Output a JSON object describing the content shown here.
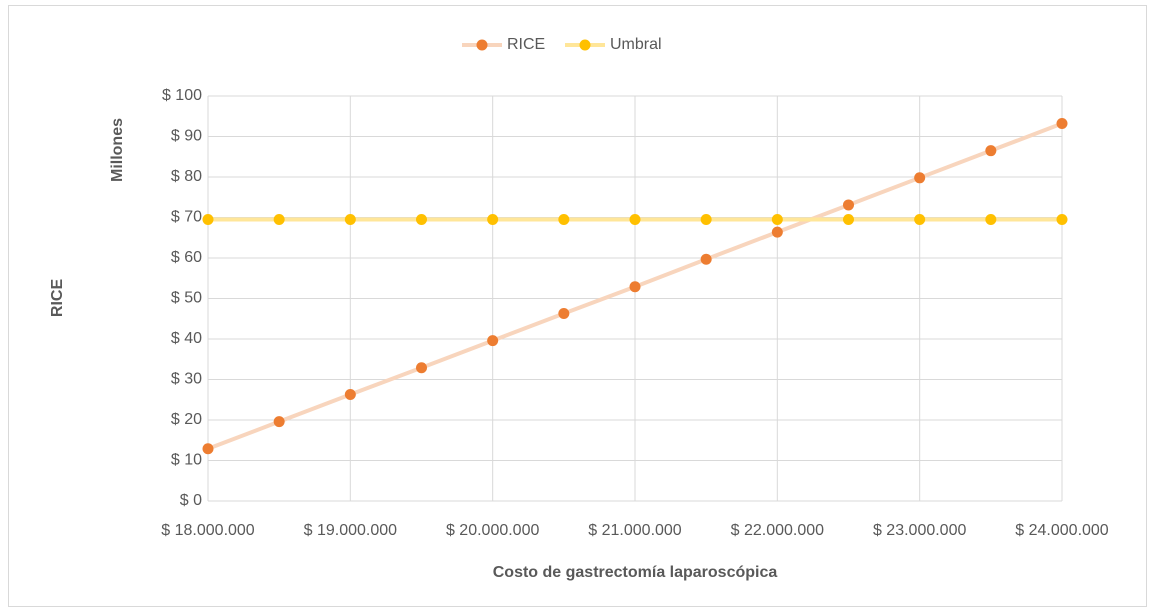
{
  "chart_data": {
    "type": "line",
    "y_label": "RICE",
    "y_unit_label": "Millones",
    "x_label": "Costo de gastrectomía laparoscópica",
    "x": [
      18000000,
      18500000,
      19000000,
      19500000,
      20000000,
      20500000,
      21000000,
      21500000,
      22000000,
      22500000,
      23000000,
      23500000,
      24000000
    ],
    "series": [
      {
        "name": "RICE",
        "color": "#ed7d31",
        "line_color": "#f8d5bd",
        "values": [
          12.9,
          19.6,
          26.3,
          32.9,
          39.6,
          46.3,
          52.9,
          59.7,
          66.4,
          73.1,
          79.8,
          86.5,
          93.2
        ]
      },
      {
        "name": "Umbral",
        "color": "#ffc000",
        "line_color": "#ffe699",
        "values": [
          69.5,
          69.5,
          69.5,
          69.5,
          69.5,
          69.5,
          69.5,
          69.5,
          69.5,
          69.5,
          69.5,
          69.5,
          69.5
        ]
      }
    ],
    "xlim": [
      18000000,
      24000000
    ],
    "xticks": [
      {
        "value": 18000000,
        "label": "$ 18.000.000"
      },
      {
        "value": 19000000,
        "label": "$ 19.000.000"
      },
      {
        "value": 20000000,
        "label": "$ 20.000.000"
      },
      {
        "value": 21000000,
        "label": "$ 21.000.000"
      },
      {
        "value": 22000000,
        "label": "$ 22.000.000"
      },
      {
        "value": 23000000,
        "label": "$ 23.000.000"
      },
      {
        "value": 24000000,
        "label": "$ 24.000.000"
      }
    ],
    "ylim": [
      0,
      100
    ],
    "yticks": [
      {
        "value": 0,
        "label": "$ 0"
      },
      {
        "value": 10,
        "label": "$ 10"
      },
      {
        "value": 20,
        "label": "$ 20"
      },
      {
        "value": 30,
        "label": "$ 30"
      },
      {
        "value": 40,
        "label": "$ 40"
      },
      {
        "value": 50,
        "label": "$ 50"
      },
      {
        "value": 60,
        "label": "$ 60"
      },
      {
        "value": 70,
        "label": "$ 70"
      },
      {
        "value": 80,
        "label": "$ 80"
      },
      {
        "value": 90,
        "label": "$ 90"
      },
      {
        "value": 100,
        "label": "$ 100"
      }
    ],
    "grid": true,
    "legend": "top"
  }
}
